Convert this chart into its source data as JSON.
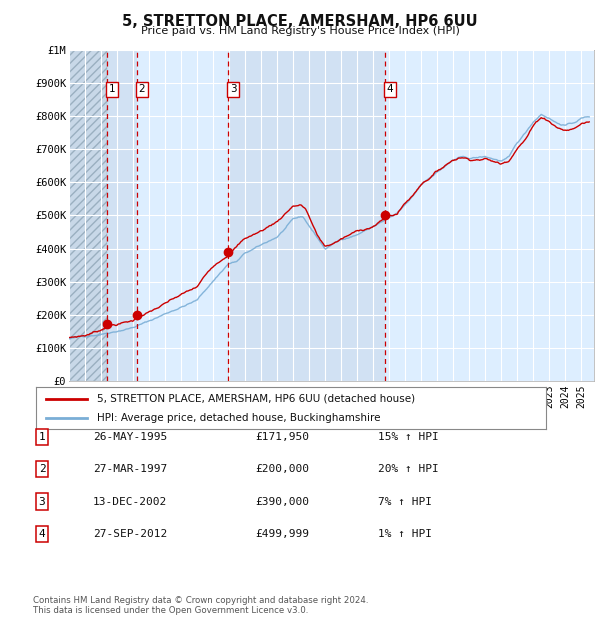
{
  "title": "5, STRETTON PLACE, AMERSHAM, HP6 6UU",
  "subtitle": "Price paid vs. HM Land Registry's House Price Index (HPI)",
  "ylabel_ticks": [
    "£0",
    "£100K",
    "£200K",
    "£300K",
    "£400K",
    "£500K",
    "£600K",
    "£700K",
    "£800K",
    "£900K",
    "£1M"
  ],
  "ytick_values": [
    0,
    100000,
    200000,
    300000,
    400000,
    500000,
    600000,
    700000,
    800000,
    900000,
    1000000
  ],
  "ylim": [
    0,
    1000000
  ],
  "xlim_start": 1993.0,
  "xlim_end": 2025.8,
  "purchases": [
    {
      "year": 1995.39,
      "price": 171950,
      "label": "1"
    },
    {
      "year": 1997.24,
      "price": 200000,
      "label": "2"
    },
    {
      "year": 2002.95,
      "price": 390000,
      "label": "3"
    },
    {
      "year": 2012.74,
      "price": 499999,
      "label": "4"
    }
  ],
  "purchase_vline_color": "#cc0000",
  "purchase_dot_color": "#cc0000",
  "hpi_line_color": "#7aaed6",
  "price_line_color": "#cc0000",
  "bg_color": "#ddeeff",
  "grid_color": "#ffffff",
  "legend_label_red": "5, STRETTON PLACE, AMERSHAM, HP6 6UU (detached house)",
  "legend_label_blue": "HPI: Average price, detached house, Buckinghamshire",
  "table_entries": [
    {
      "num": "1",
      "date": "26-MAY-1995",
      "price": "£171,950",
      "pct": "15%",
      "dir": "↑",
      "ref": "HPI"
    },
    {
      "num": "2",
      "date": "27-MAR-1997",
      "price": "£200,000",
      "pct": "20%",
      "dir": "↑",
      "ref": "HPI"
    },
    {
      "num": "3",
      "date": "13-DEC-2002",
      "price": "£390,000",
      "pct": "7%",
      "dir": "↑",
      "ref": "HPI"
    },
    {
      "num": "4",
      "date": "27-SEP-2012",
      "price": "£499,999",
      "pct": "1%",
      "dir": "↑",
      "ref": "HPI"
    }
  ],
  "footnote": "Contains HM Land Registry data © Crown copyright and database right 2024.\nThis data is licensed under the Open Government Licence v3.0.",
  "shaded_regions": [
    {
      "start": 1995.39,
      "end": 1997.24
    },
    {
      "start": 2002.95,
      "end": 2012.74
    }
  ]
}
